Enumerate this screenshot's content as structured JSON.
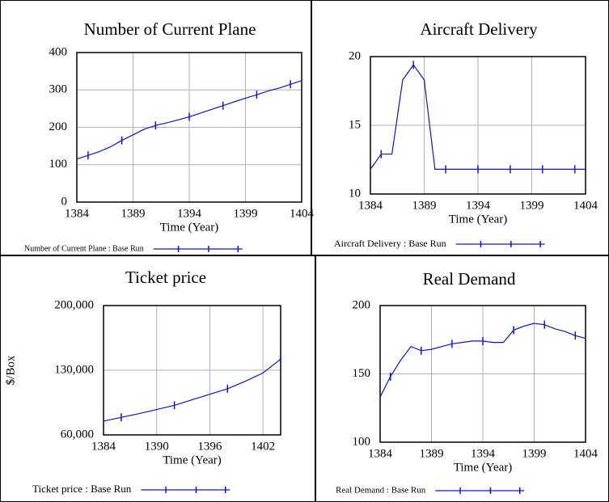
{
  "chart_data": [
    {
      "type": "line",
      "title": "Number of Current Plane",
      "xlabel": "Time (Year)",
      "x": [
        1384,
        1385,
        1386,
        1387,
        1388,
        1389,
        1390,
        1391,
        1392,
        1393,
        1394,
        1395,
        1396,
        1397,
        1398,
        1399,
        1400,
        1401,
        1402,
        1403,
        1404
      ],
      "series": [
        {
          "name": "Number of Current Plane : Base Run",
          "color": "#1010e0",
          "values": [
            115,
            125,
            135,
            148,
            165,
            180,
            195,
            205,
            212,
            220,
            228,
            238,
            248,
            258,
            268,
            278,
            287,
            297,
            305,
            315,
            325
          ]
        }
      ],
      "xlim": [
        1384,
        1404
      ],
      "ylim": [
        0,
        400
      ],
      "xticks": [
        1384,
        1389,
        1394,
        1399,
        1404
      ],
      "yticks": [
        0,
        100,
        200,
        300,
        400
      ],
      "grid": true
    },
    {
      "type": "line",
      "title": "Aircraft Delivery",
      "xlabel": "Time (Year)",
      "x": [
        1384,
        1385,
        1386,
        1387,
        1388,
        1389,
        1390,
        1391,
        1392,
        1393,
        1394,
        1395,
        1396,
        1397,
        1398,
        1399,
        1400,
        1401,
        1402,
        1403,
        1404
      ],
      "series": [
        {
          "name": "Aircraft Delivery : Base Run",
          "color": "#1010e0",
          "values": [
            11.8,
            12.9,
            12.9,
            18.3,
            19.4,
            18.3,
            11.8,
            11.8,
            11.8,
            11.8,
            11.8,
            11.8,
            11.8,
            11.8,
            11.8,
            11.8,
            11.8,
            11.8,
            11.8,
            11.8,
            11.8
          ]
        }
      ],
      "xlim": [
        1384,
        1404
      ],
      "ylim": [
        10,
        20
      ],
      "xticks": [
        1384,
        1389,
        1394,
        1399,
        1404
      ],
      "yticks": [
        10,
        15,
        20
      ],
      "grid": true
    },
    {
      "type": "line",
      "title": "Ticket price",
      "xlabel": "Time (Year)",
      "ylabel": "$/Box",
      "x": [
        1384,
        1386,
        1388,
        1390,
        1392,
        1394,
        1396,
        1398,
        1400,
        1402,
        1404
      ],
      "series": [
        {
          "name": "Ticket price : Base Run",
          "color": "#1010e0",
          "values": [
            75000,
            79000,
            83000,
            87500,
            92000,
            98000,
            104000,
            110000,
            118000,
            127000,
            142000
          ]
        }
      ],
      "xlim": [
        1384,
        1404
      ],
      "ylim": [
        60000,
        200000
      ],
      "xticks": [
        1384,
        1390,
        1396,
        1402
      ],
      "yticks": [
        {
          "value": 60000,
          "label": "60,000"
        },
        {
          "value": 130000,
          "label": "130,000"
        },
        {
          "value": 200000,
          "label": "200,000"
        }
      ],
      "grid": true
    },
    {
      "type": "line",
      "title": "Real Demand",
      "xlabel": "Time (Year)",
      "x": [
        1384,
        1385,
        1386,
        1387,
        1388,
        1389,
        1390,
        1391,
        1392,
        1393,
        1394,
        1395,
        1396,
        1397,
        1398,
        1399,
        1400,
        1401,
        1402,
        1403,
        1404
      ],
      "series": [
        {
          "name": "Real Demand : Base Run",
          "color": "#1010e0",
          "values": [
            133,
            148,
            160,
            170,
            167,
            168,
            170,
            172,
            173,
            174,
            174,
            173,
            173,
            182,
            185,
            187,
            186,
            183,
            181,
            178,
            176
          ]
        }
      ],
      "xlim": [
        1384,
        1404
      ],
      "ylim": [
        100,
        200
      ],
      "xticks": [
        1384,
        1389,
        1394,
        1399,
        1404
      ],
      "yticks": [
        100,
        150,
        200
      ],
      "grid": true
    }
  ]
}
